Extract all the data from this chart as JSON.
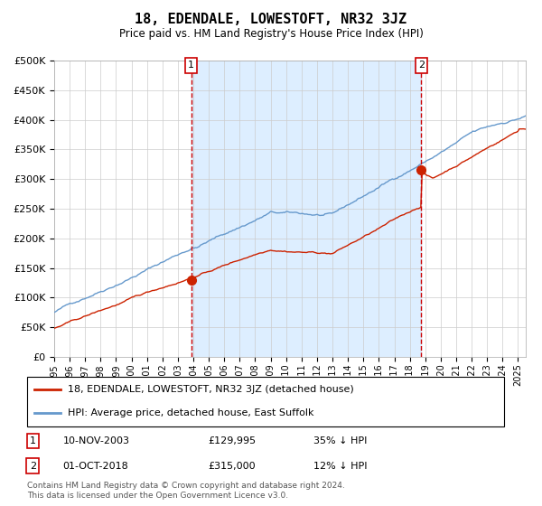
{
  "title": "18, EDENDALE, LOWESTOFT, NR32 3JZ",
  "subtitle": "Price paid vs. HM Land Registry's House Price Index (HPI)",
  "legend_line1": "18, EDENDALE, LOWESTOFT, NR32 3JZ (detached house)",
  "legend_line2": "HPI: Average price, detached house, East Suffolk",
  "footnote1": "Contains HM Land Registry data © Crown copyright and database right 2024.",
  "footnote2": "This data is licensed under the Open Government Licence v3.0.",
  "sale1_label": "10-NOV-2003",
  "sale1_price": "£129,995",
  "sale1_pct": "35% ↓ HPI",
  "sale2_label": "01-OCT-2018",
  "sale2_price": "£315,000",
  "sale2_pct": "12% ↓ HPI",
  "sale1_year": 2003.86,
  "sale1_value": 129995,
  "sale2_year": 2018.75,
  "sale2_value": 315000,
  "hpi_color": "#6699cc",
  "price_color": "#cc2200",
  "fill_color": "#ddeeff",
  "bg_color": "#ffffff",
  "grid_color": "#cccccc",
  "vline_color": "#cc0000",
  "marker_color": "#cc2200",
  "xmin": 1995.0,
  "xmax": 2025.5,
  "ymin": 0,
  "ymax": 500000
}
